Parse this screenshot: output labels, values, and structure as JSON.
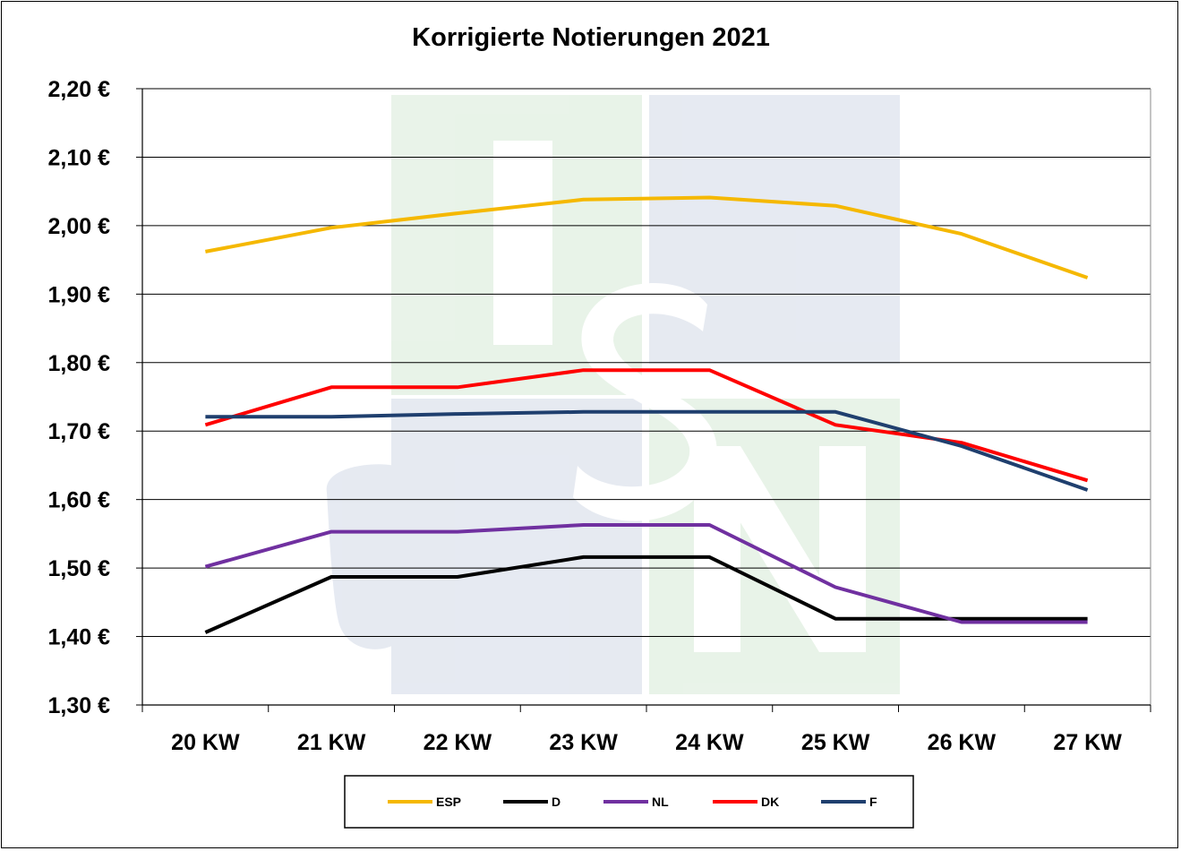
{
  "chart_data": {
    "type": "line",
    "title": "Korrigierte Notierungen 2021",
    "xlabel": "",
    "ylabel": "",
    "categories": [
      "20 KW",
      "21 KW",
      "22 KW",
      "23 KW",
      "24 KW",
      "25 KW",
      "26 KW",
      "27 KW"
    ],
    "ylim": [
      1.3,
      2.2
    ],
    "ytick_values": [
      1.3,
      1.4,
      1.5,
      1.6,
      1.7,
      1.8,
      1.9,
      2.0,
      2.1,
      2.2
    ],
    "ytick_labels": [
      "1,30 €",
      "1,40 €",
      "1,50 €",
      "1,60 €",
      "1,70 €",
      "1,80 €",
      "1,90 €",
      "2,00 €",
      "2,10 €",
      "2,20 €"
    ],
    "grid": "horizontal",
    "legend_position": "bottom",
    "series": [
      {
        "name": "ESP",
        "color": "#F5B800",
        "values": [
          1.962,
          1.997,
          2.018,
          2.038,
          2.041,
          2.029,
          1.988,
          1.924
        ]
      },
      {
        "name": "D",
        "color": "#000000",
        "values": [
          1.406,
          1.487,
          1.487,
          1.516,
          1.516,
          1.426,
          1.426,
          1.426
        ]
      },
      {
        "name": "NL",
        "color": "#7030A0",
        "values": [
          1.502,
          1.553,
          1.553,
          1.563,
          1.563,
          1.472,
          1.421,
          1.421
        ]
      },
      {
        "name": "DK",
        "color": "#FF0000",
        "values": [
          1.709,
          1.764,
          1.764,
          1.789,
          1.789,
          1.709,
          1.683,
          1.628
        ]
      },
      {
        "name": "F",
        "color": "#1F3F6E",
        "values": [
          1.721,
          1.721,
          1.725,
          1.728,
          1.728,
          1.728,
          1.678,
          1.614
        ]
      }
    ]
  }
}
